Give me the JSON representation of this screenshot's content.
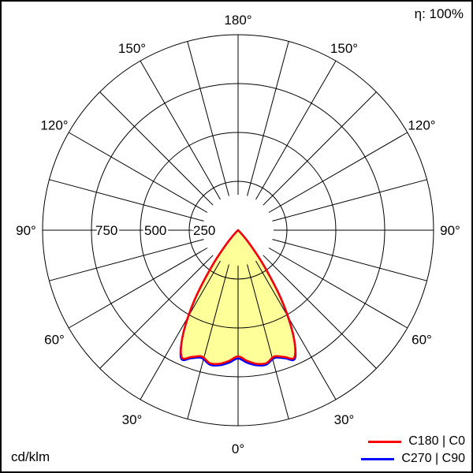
{
  "meta": {
    "efficiency": "η: 100%",
    "unit": "cd/klm"
  },
  "legend": [
    {
      "label": "C180 | C0",
      "color": "#ff0000"
    },
    {
      "label": "C270 | C90",
      "color": "#0000ff"
    }
  ],
  "chart_data": {
    "type": "polar_intensity",
    "unit": "cd/klm",
    "efficiency": "η: 100%",
    "ring_values": [
      250,
      500,
      750,
      1000
    ],
    "ring_labels": [
      "250",
      "500",
      "750"
    ],
    "spoke_step_deg": 15,
    "angle_labels": [
      "0°",
      "30°",
      "60°",
      "90°",
      "120°",
      "150°",
      "180°"
    ],
    "gamma_deg": [
      0,
      4,
      8,
      12,
      16,
      20,
      24,
      28,
      32,
      36,
      40,
      44,
      48
    ],
    "series": [
      {
        "name": "C180 | C0",
        "color": "#ff0000",
        "values": [
          645,
          670,
          690,
          695,
          672,
          690,
          710,
          598,
          420,
          230,
          95,
          25,
          0
        ]
      },
      {
        "name": "C270 | C90",
        "color": "#0000ff",
        "values": [
          656,
          680,
          698,
          702,
          679,
          697,
          717,
          596,
          416,
          226,
          92,
          23,
          0
        ]
      }
    ],
    "fill_color": "#ffff99",
    "grid_color": "#000000",
    "rlim": [
      0,
      1000
    ]
  }
}
